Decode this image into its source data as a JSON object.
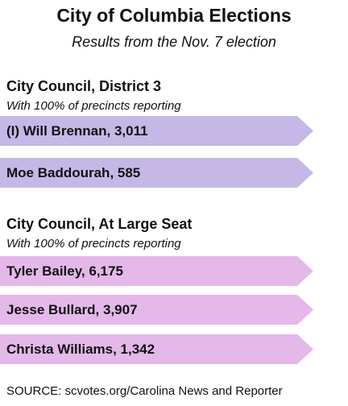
{
  "header": {
    "title": "City of Columbia Elections",
    "subtitle": "Results from the Nov. 7 election"
  },
  "races": [
    {
      "title": "City Council, District 3",
      "note": "With 100% of precincts reporting",
      "color": "#c5b8e6",
      "candidates": [
        {
          "label": "(I) Will Brennan, 3,011"
        },
        {
          "label": "Moe Baddourah, 585"
        }
      ]
    },
    {
      "title": "City Council, At Large Seat",
      "note": "With 100% of precincts reporting",
      "color": "#e5b8ea",
      "candidates": [
        {
          "label": "Tyler Bailey, 6,175"
        },
        {
          "label": "Jesse Bullard, 3,907"
        },
        {
          "label": "Christa Williams, 1,342"
        }
      ]
    }
  ],
  "source": "SOURCE: scvotes.org/Carolina News and Reporter"
}
